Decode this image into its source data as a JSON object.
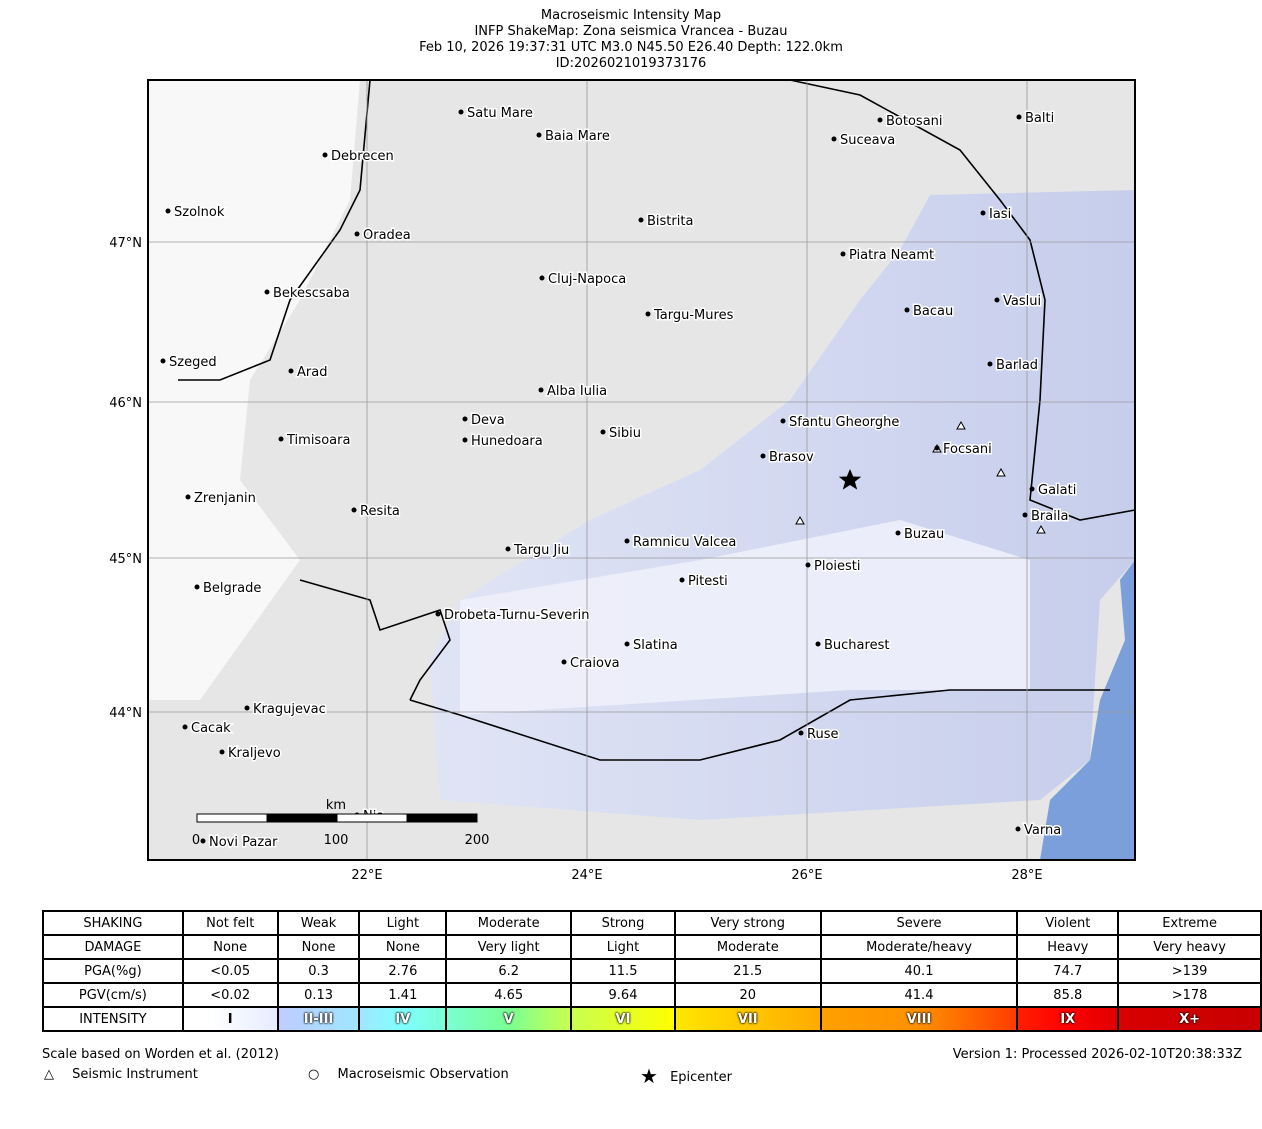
{
  "header": {
    "lines": [
      "Macroseismic Intensity Map",
      "INFP ShakeMap: Zona seismica Vrancea - Buzau",
      "Feb 10, 2026 19:37:31 UTC M3.0 N45.50 E26.40 Depth: 122.0km",
      "ID:2026021019373176"
    ]
  },
  "map": {
    "cities": [
      "Satu Mare",
      "Baia Mare",
      "Debrecen",
      "Botosani",
      "Balti",
      "Suceava",
      "Szolnok",
      "Bistrita",
      "Iasi",
      "Oradea",
      "Piatra Neamt",
      "Cluj-Napoca",
      "Bekescsaba",
      "Vaslui",
      "Bacau",
      "Targu-Mures",
      "Szeged",
      "Barlad",
      "Arad",
      "Alba Iulia",
      "Deva",
      "Sfantu Gheorghe",
      "Hunedoara",
      "Timisoara",
      "Sibiu",
      "Focsani",
      "Brasov",
      "Galati",
      "Zrenjanin",
      "Resita",
      "Braila",
      "Buzau",
      "Ramnicu Valcea",
      "Targu Jiu",
      "Ploiesti",
      "Pitesti",
      "Belgrade",
      "Drobeta-Turnu-Severin",
      "Slatina",
      "Bucharest",
      "Craiova",
      "Kragujevac",
      "Cacak",
      "Ruse",
      "Kraljevo",
      "Varna",
      "Novi Pazar",
      "Nis"
    ],
    "lon_labels": [
      "22°E",
      "24°E",
      "26°E",
      "28°E"
    ],
    "lat_labels": [
      "47°N",
      "46°N",
      "45°N",
      "44°N"
    ],
    "scale": {
      "unit": "km",
      "labels": [
        "0",
        "100",
        "200"
      ]
    }
  },
  "table": {
    "rows": [
      [
        "SHAKING",
        "Not felt",
        "Weak",
        "Light",
        "Moderate",
        "Strong",
        "Very strong",
        "Severe",
        "Violent",
        "Extreme"
      ],
      [
        "DAMAGE",
        "None",
        "None",
        "None",
        "Very light",
        "Light",
        "Moderate",
        "Moderate/heavy",
        "Heavy",
        "Very heavy"
      ],
      [
        "PGA(%g)",
        "<0.05",
        "0.3",
        "2.76",
        "6.2",
        "11.5",
        "21.5",
        "40.1",
        "74.7",
        ">139"
      ],
      [
        "PGV(cm/s)",
        "<0.02",
        "0.13",
        "1.41",
        "4.65",
        "9.64",
        "20",
        "41.4",
        "85.8",
        ">178"
      ],
      [
        "INTENSITY",
        "I",
        "II-III",
        "IV",
        "V",
        "VI",
        "VII",
        "VIII",
        "IX",
        "X+"
      ]
    ]
  },
  "footer": {
    "note": "Scale based on Worden et al. (2012)",
    "version": "Version 1: Processed 2026-02-10T20:38:33Z",
    "legend": [
      "Seismic Instrument",
      "Macroseismic Observation",
      "Epicenter"
    ]
  }
}
